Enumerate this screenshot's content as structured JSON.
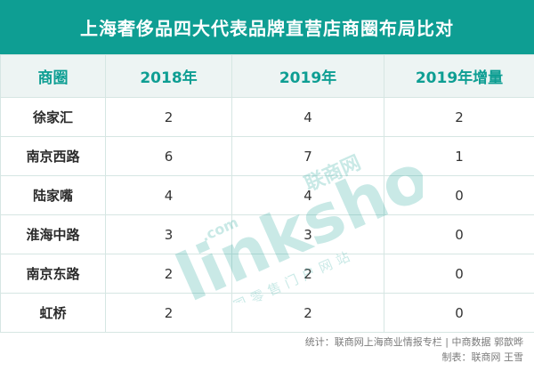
{
  "title": "上海奢侈品四大代表品牌直营店商圈布局比对",
  "table": {
    "headers": [
      "商圈",
      "2018年",
      "2019年",
      "2019年增量"
    ],
    "rows": [
      [
        "徐家汇",
        "2",
        "4",
        "2"
      ],
      [
        "南京西路",
        "6",
        "7",
        "1"
      ],
      [
        "陆家嘴",
        "4",
        "4",
        "0"
      ],
      [
        "淮海中路",
        "3",
        "3",
        "0"
      ],
      [
        "南京东路",
        "2",
        "2",
        "0"
      ],
      [
        "虹桥",
        "2",
        "2",
        "0"
      ]
    ]
  },
  "watermark": {
    "brand": "linkshop",
    "com": ".com",
    "cn_name": "联商网",
    "sub_text": "中国零售门户网站",
    "color": "#0e9e93"
  },
  "footer": {
    "line1": "统计：联商网上海商业情报专栏 | 中商数据 郭歆晔",
    "line2": "制表：联商网 王雪"
  },
  "colors": {
    "accent": "#0e9e93",
    "header_bg": "#edf4f3",
    "border": "#d6e6e3"
  }
}
